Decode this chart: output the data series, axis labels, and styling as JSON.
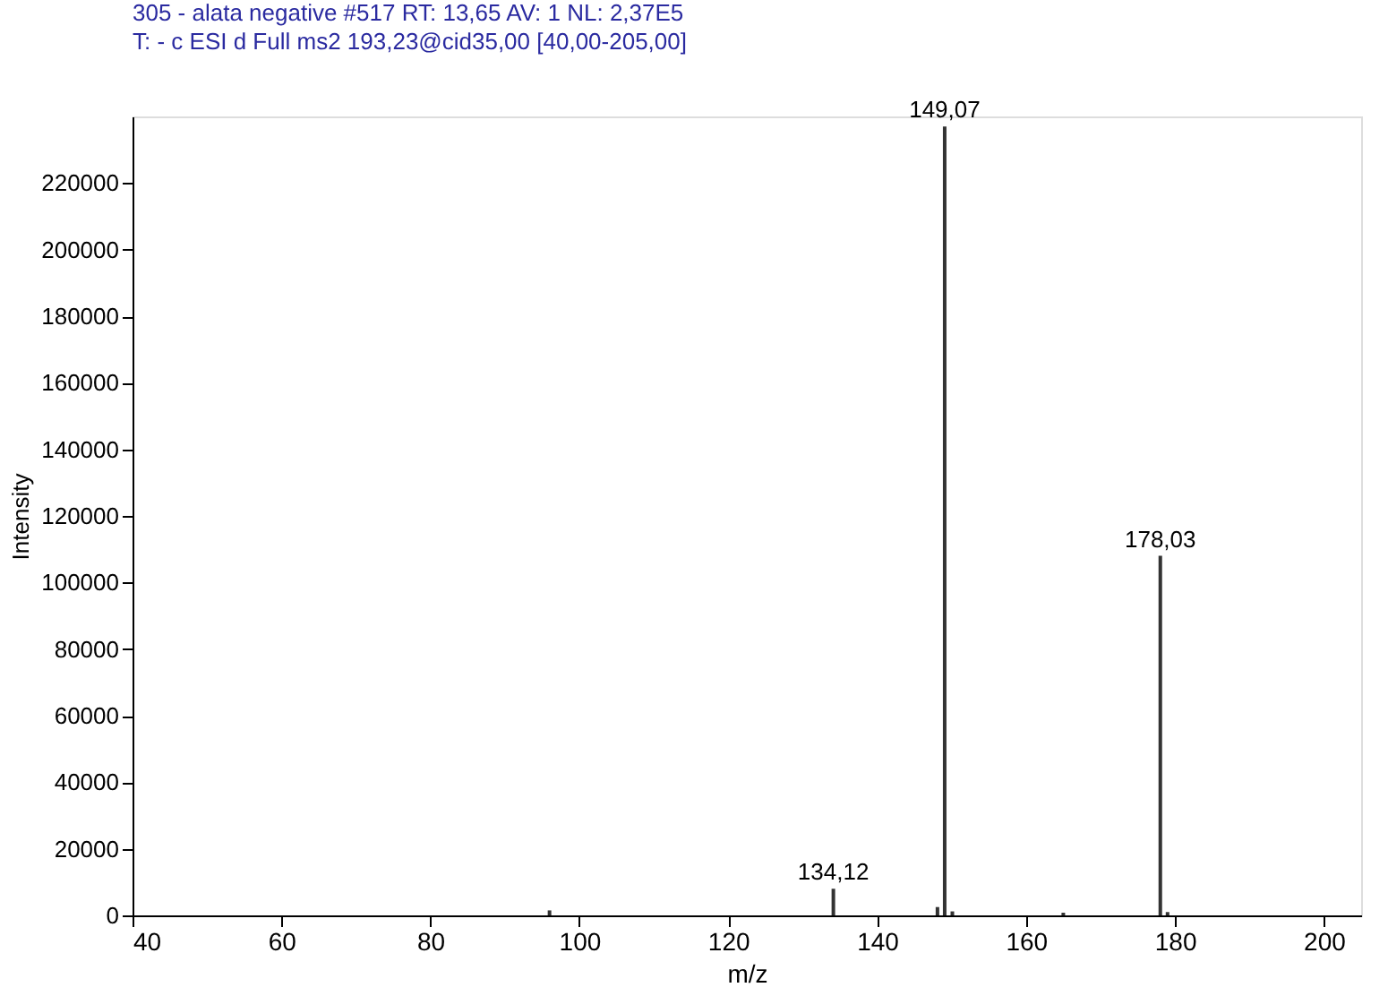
{
  "chart_data": {
    "type": "bar",
    "title": "305 - alata negative #517  RT: 13,65  AV: 1  NL: 2,37E5",
    "subtitle": "T: - c ESI d Full ms2 193,23@cid35,00 [40,00-205,00]",
    "xlabel": "m/z",
    "ylabel": "Intensity",
    "x": [
      96.0,
      134.12,
      148.1,
      149.07,
      150.1,
      165.0,
      178.03,
      179.0
    ],
    "values": [
      1500,
      8000,
      2500,
      237000,
      1200,
      800,
      108000,
      1000
    ],
    "annotations": [
      {
        "text": "134,12",
        "x": 134.12,
        "y": 8000
      },
      {
        "text": "149,07",
        "x": 149.07,
        "y": 237000
      },
      {
        "text": "178,03",
        "x": 178.03,
        "y": 108000
      }
    ],
    "color": "#333333",
    "xlim": [
      40,
      205
    ],
    "xticks": [
      40,
      60,
      80,
      100,
      120,
      140,
      160,
      180,
      200
    ],
    "ylim": [
      0,
      240000
    ],
    "yticks": [
      0,
      20000,
      40000,
      60000,
      80000,
      100000,
      120000,
      140000,
      160000,
      180000,
      200000,
      220000
    ],
    "grid": false
  }
}
